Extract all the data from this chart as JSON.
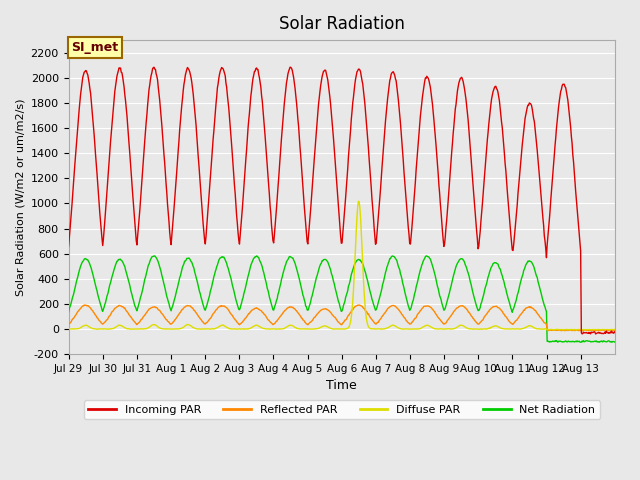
{
  "title": "Solar Radiation",
  "ylabel": "Solar Radiation (W/m2 or um/m2/s)",
  "xlabel": "Time",
  "ylim": [
    -200,
    2300
  ],
  "yticks": [
    -200,
    0,
    200,
    400,
    600,
    800,
    1000,
    1200,
    1400,
    1600,
    1800,
    2000,
    2200
  ],
  "x_tick_labels": [
    "Jul 29",
    "Jul 30",
    "Jul 31",
    "Aug 1",
    "Aug 2",
    "Aug 3",
    "Aug 4",
    "Aug 5",
    "Aug 6",
    "Aug 7",
    "Aug 8",
    "Aug 9",
    "Aug 10",
    "Aug 11",
    "Aug 12",
    "Aug 13"
  ],
  "annotation_text": "SI_met",
  "annotation_bg": "#ffffaa",
  "annotation_border": "#996600",
  "background_color": "#e8e8e8",
  "plot_bg": "#e8e8e8",
  "grid_color": "#ffffff",
  "colors": {
    "incoming": "#dd0000",
    "reflected": "#ff8800",
    "diffuse": "#dddd00",
    "net": "#00cc00"
  },
  "legend_labels": [
    "Incoming PAR",
    "Reflected PAR",
    "Diffuse PAR",
    "Net Radiation"
  ],
  "n_days": 16,
  "peaks_incoming": [
    2060,
    2075,
    2080,
    2075,
    2080,
    2080,
    2080,
    2060,
    2070,
    2050,
    2010,
    2000,
    1930,
    1800,
    1950,
    0
  ],
  "peaks_net": [
    560,
    555,
    580,
    565,
    575,
    580,
    575,
    555,
    555,
    580,
    580,
    560,
    530,
    540,
    0,
    0
  ],
  "peaks_reflected": [
    190,
    185,
    175,
    185,
    185,
    165,
    175,
    160,
    190,
    185,
    185,
    185,
    180,
    175,
    0,
    0
  ],
  "peaks_diffuse": [
    30,
    30,
    35,
    35,
    30,
    30,
    30,
    25,
    1020,
    30,
    30,
    30,
    25,
    25,
    0,
    0
  ],
  "night_min_incoming": -30,
  "night_min_net": -100,
  "night_min_reflected": -10,
  "night_min_diffuse": -5
}
